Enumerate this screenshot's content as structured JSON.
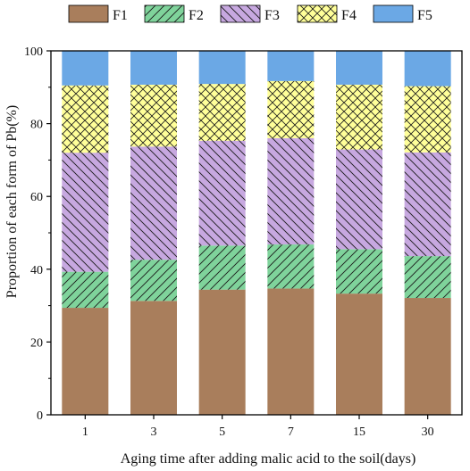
{
  "chart_data": {
    "type": "bar",
    "stacked": true,
    "xlabel": "Aging time after adding malic acid to the soil(days)",
    "ylabel": "Proportion of each form of Pb(%)",
    "ylim": [
      0,
      100
    ],
    "yticks": [
      0,
      20,
      40,
      60,
      80,
      100
    ],
    "grid": false,
    "legend": "top",
    "categories": [
      "1",
      "3",
      "5",
      "7",
      "15",
      "30"
    ],
    "series": [
      {
        "name": "F1",
        "color": "#A97E5C",
        "pattern": "solid",
        "values": [
          29.4,
          31.3,
          34.4,
          34.7,
          33.3,
          32.1
        ]
      },
      {
        "name": "F2",
        "color": "#7FD39B",
        "pattern": "hatch-forward",
        "values": [
          9.9,
          11.3,
          12.1,
          12.1,
          12.2,
          11.5
        ]
      },
      {
        "name": "F3",
        "color": "#C7A8E0",
        "pattern": "hatch-back",
        "values": [
          32.7,
          31.1,
          28.8,
          29.2,
          27.4,
          28.5
        ]
      },
      {
        "name": "F4",
        "color": "#FFFF99",
        "pattern": "crosshatch",
        "values": [
          18.5,
          17.0,
          15.6,
          15.7,
          17.8,
          18.2
        ]
      },
      {
        "name": "F5",
        "color": "#6BA8E5",
        "pattern": "solid",
        "values": [
          9.5,
          9.3,
          9.1,
          8.3,
          9.3,
          9.7
        ]
      }
    ]
  }
}
